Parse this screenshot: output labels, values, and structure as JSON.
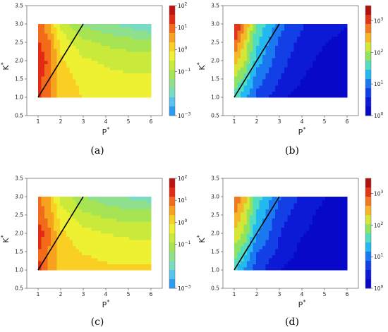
{
  "captions": [
    "(a)",
    "(b)",
    "(c)",
    "(d)"
  ],
  "chart_data": [
    {
      "type": "heatmap",
      "panel": "(a)",
      "xlabel": "P*",
      "ylabel": "K*",
      "xlim": [
        0.5,
        6.5
      ],
      "ylim": [
        0.5,
        3.5
      ],
      "xticks": [
        "1",
        "2",
        "3",
        "4",
        "5",
        "6"
      ],
      "yticks": [
        "0.5",
        "1.0",
        "1.5",
        "2.0",
        "2.5",
        "3.0",
        "3.5"
      ],
      "colorscale": "log",
      "colorbar_range": [
        0.001,
        100
      ],
      "colorbar_ticks": [
        "10^2",
        "10^1",
        "10^0",
        "10^-1",
        "10^-3"
      ],
      "x": [
        1,
        1.5,
        2,
        3,
        4,
        5,
        6
      ],
      "y": [
        1,
        1.5,
        2,
        2.5,
        3
      ],
      "z_log10": [
        [
          1.4,
          0.8,
          0.2,
          -0.1,
          -0.2,
          -0.3,
          -0.3
        ],
        [
          1.3,
          0.9,
          0.1,
          -0.2,
          -0.3,
          -0.4,
          -0.4
        ],
        [
          1.6,
          1.0,
          0.0,
          -0.4,
          -0.6,
          -0.7,
          -0.7
        ],
        [
          1.2,
          0.8,
          -0.2,
          -0.8,
          -1.0,
          -1.1,
          -1.2
        ],
        [
          1.0,
          0.4,
          -0.6,
          -1.4,
          -1.7,
          -1.9,
          -2.2
        ]
      ],
      "line": {
        "x": [
          1,
          3
        ],
        "y": [
          1,
          3
        ]
      }
    },
    {
      "type": "heatmap",
      "panel": "(b)",
      "xlabel": "P*",
      "ylabel": "K*",
      "xlim": [
        0.5,
        6.5
      ],
      "ylim": [
        0.5,
        3.5
      ],
      "xticks": [
        "1",
        "2",
        "3",
        "4",
        "5",
        "6"
      ],
      "yticks": [
        "0.5",
        "1.0",
        "1.5",
        "2.0",
        "2.5",
        "3.0",
        "3.5"
      ],
      "colorscale": "log",
      "colorbar_range": [
        1,
        3000
      ],
      "colorbar_ticks": [
        "10^3",
        "10^2",
        "10^1",
        "10^0"
      ],
      "x": [
        1,
        1.5,
        2,
        3,
        4,
        5,
        6
      ],
      "y": [
        1,
        1.5,
        2,
        2.5,
        3
      ],
      "z_log10": [
        [
          1.6,
          1.2,
          0.8,
          0.4,
          0.1,
          0.05,
          0.0
        ],
        [
          2.0,
          1.6,
          1.0,
          0.6,
          0.3,
          0.1,
          0.0
        ],
        [
          2.5,
          2.0,
          1.3,
          0.7,
          0.4,
          0.2,
          0.1
        ],
        [
          2.9,
          2.2,
          1.5,
          0.8,
          0.5,
          0.3,
          0.2
        ],
        [
          3.3,
          2.6,
          1.7,
          1.0,
          0.6,
          0.4,
          0.3
        ]
      ],
      "line": {
        "x": [
          1,
          3
        ],
        "y": [
          1,
          3
        ]
      }
    },
    {
      "type": "heatmap",
      "panel": "(c)",
      "xlabel": "P*",
      "ylabel": "K*",
      "xlim": [
        0.5,
        6.5
      ],
      "ylim": [
        0.5,
        3.5
      ],
      "xticks": [
        "1",
        "2",
        "3",
        "4",
        "5",
        "6"
      ],
      "yticks": [
        "0.5",
        "1.0",
        "1.5",
        "2.0",
        "2.5",
        "3.0",
        "3.5"
      ],
      "colorscale": "log",
      "colorbar_range": [
        0.001,
        100
      ],
      "colorbar_ticks": [
        "10^2",
        "10^1",
        "10^0",
        "10^-1",
        "10^-3"
      ],
      "x": [
        1,
        1.5,
        2,
        3,
        4,
        5,
        6
      ],
      "y": [
        1,
        1.5,
        2,
        2.5,
        3
      ],
      "z_log10": [
        [
          1.3,
          0.7,
          0.2,
          0.1,
          0.0,
          0.0,
          0.0
        ],
        [
          1.2,
          0.7,
          0.1,
          -0.1,
          -0.2,
          -0.2,
          -0.2
        ],
        [
          1.5,
          0.8,
          0.0,
          -0.3,
          -0.5,
          -0.6,
          -0.6
        ],
        [
          1.0,
          0.6,
          -0.3,
          -0.8,
          -1.0,
          -1.1,
          -1.1
        ],
        [
          0.9,
          0.3,
          -0.6,
          -1.3,
          -1.6,
          -1.8,
          -2.0
        ]
      ],
      "line": {
        "x": [
          1,
          3
        ],
        "y": [
          1,
          3
        ]
      }
    },
    {
      "type": "heatmap",
      "panel": "(d)",
      "xlabel": "P*",
      "ylabel": "K*",
      "xlim": [
        0.5,
        6.5
      ],
      "ylim": [
        0.5,
        3.5
      ],
      "xticks": [
        "1",
        "2",
        "3",
        "4",
        "5",
        "6"
      ],
      "yticks": [
        "0.5",
        "1.0",
        "1.5",
        "2.0",
        "2.5",
        "3.0",
        "3.5"
      ],
      "colorscale": "log",
      "colorbar_range": [
        1,
        3000
      ],
      "colorbar_ticks": [
        "10^3",
        "10^2",
        "10^1",
        "10^0"
      ],
      "x": [
        1,
        1.5,
        2,
        3,
        4,
        5,
        6
      ],
      "y": [
        1,
        1.5,
        2,
        2.5,
        3
      ],
      "z_log10": [
        [
          1.5,
          1.1,
          0.7,
          0.3,
          0.1,
          0.05,
          0.0
        ],
        [
          1.9,
          1.5,
          0.9,
          0.5,
          0.2,
          0.1,
          0.0
        ],
        [
          2.3,
          1.9,
          1.2,
          0.6,
          0.3,
          0.2,
          0.1
        ],
        [
          2.6,
          2.1,
          1.4,
          0.7,
          0.4,
          0.2,
          0.1
        ],
        [
          3.0,
          2.4,
          1.6,
          0.9,
          0.5,
          0.3,
          0.2
        ]
      ],
      "line": {
        "x": [
          1,
          3
        ],
        "y": [
          1,
          3
        ]
      }
    }
  ]
}
